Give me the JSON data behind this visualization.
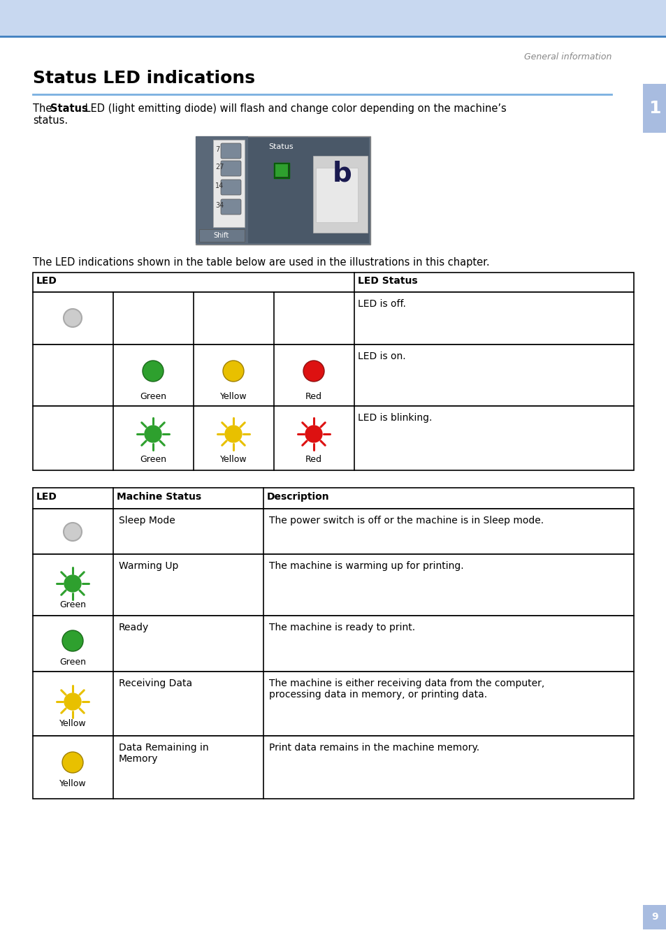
{
  "page_bg": "#ffffff",
  "header_bg": "#c8d8f0",
  "header_line_color": "#4080c0",
  "header_text": "General information",
  "title": "Status LED indications",
  "title_underline_color": "#7ab0e0",
  "chapter_num": "1",
  "chapter_badge_color": "#a8bce0",
  "table1_intro": "The LED indications shown in the table below are used in the illustrations in this chapter.",
  "page_num": "9",
  "green_color": "#2ea02e",
  "yellow_color": "#e8c000",
  "red_color": "#dd1111",
  "off_color": "#cccccc",
  "off_border": "#aaaaaa"
}
